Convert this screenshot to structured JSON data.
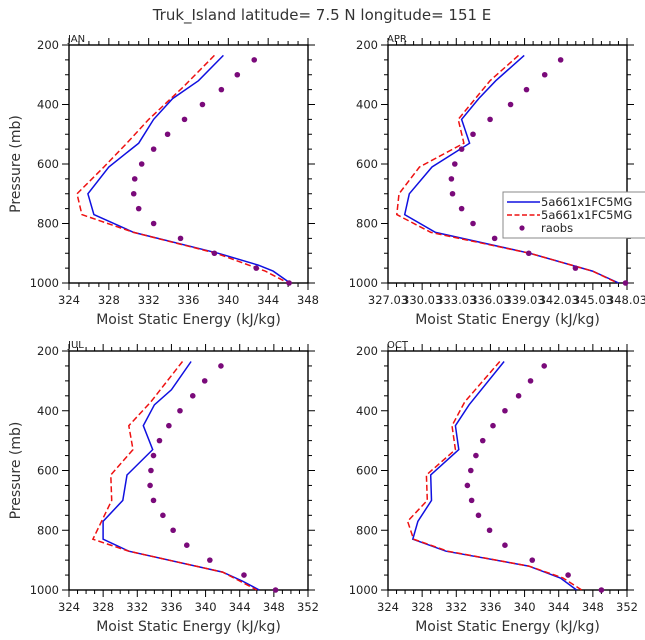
{
  "title": "Truk_Island   latitude=  7.5 N longitude=  151  E",
  "colors": {
    "model_solid": "#1010e0",
    "model_dashed": "#ee1111",
    "raobs": "#7a0a7a",
    "axis": "#000000"
  },
  "chart_data": [
    {
      "type": "line",
      "panel": "JAN",
      "xlabel": "Moist Static Energy (kJ/kg)",
      "ylabel": "Pressure (mb)",
      "xlim": [
        324,
        348
      ],
      "ylim": [
        1000,
        200
      ],
      "xticks": [
        "324",
        "328",
        "332",
        "336",
        "340",
        "344",
        "348"
      ],
      "xtick_values": [
        324,
        328,
        332,
        336,
        340,
        344,
        348
      ],
      "yticks": [
        "200",
        "400",
        "600",
        "800",
        "1000"
      ],
      "ytick_values": [
        200,
        400,
        600,
        800,
        1000
      ],
      "series": [
        {
          "name": "5a661x1FC5MG",
          "style": "solid",
          "pressure": [
            235,
            320,
            380,
            450,
            530,
            610,
            700,
            770,
            830,
            900,
            940,
            960,
            1000
          ],
          "values": [
            339.5,
            337.0,
            334.4,
            332.5,
            331.0,
            328.0,
            325.9,
            326.5,
            330.5,
            339.0,
            343.0,
            344.5,
            346.2
          ]
        },
        {
          "name": "5a661x1FC5MG",
          "style": "dashed",
          "pressure": [
            235,
            340,
            450,
            530,
            610,
            700,
            770,
            830,
            900,
            960,
            1000
          ],
          "values": [
            338.6,
            335.5,
            332.0,
            329.8,
            327.5,
            324.8,
            325.3,
            330.5,
            338.8,
            343.7,
            346.0
          ]
        },
        {
          "name": "raobs",
          "style": "dots",
          "pressure": [
            250,
            300,
            350,
            400,
            450,
            500,
            550,
            600,
            650,
            700,
            750,
            800,
            850,
            900,
            950,
            1000
          ],
          "values": [
            342.6,
            340.9,
            339.3,
            337.4,
            335.6,
            333.9,
            332.5,
            331.3,
            330.6,
            330.5,
            331.0,
            332.5,
            335.2,
            338.6,
            342.8,
            346.1
          ]
        }
      ]
    },
    {
      "type": "line",
      "panel": "APR",
      "xlabel": "Moist Static Energy (kJ/kg)",
      "ylabel": "",
      "xlim": [
        327.03,
        348.03
      ],
      "ylim": [
        1000,
        200
      ],
      "xticks": [
        "327.03",
        "330.03",
        "333.03",
        "336.03",
        "339.03",
        "342.03",
        "345.03",
        "348.03"
      ],
      "xtick_values": [
        327.03,
        330.03,
        333.03,
        336.03,
        339.03,
        342.03,
        345.03,
        348.03
      ],
      "yticks": [
        "200",
        "400",
        "600",
        "800",
        "1000"
      ],
      "ytick_values": [
        200,
        400,
        600,
        800,
        1000
      ],
      "series": [
        {
          "name": "5a661x1FC5MG",
          "style": "solid",
          "pressure": [
            235,
            320,
            380,
            450,
            530,
            610,
            700,
            770,
            830,
            900,
            960,
            1000
          ],
          "values": [
            339.0,
            336.5,
            335.0,
            333.5,
            334.2,
            330.9,
            328.9,
            328.5,
            331.2,
            339.5,
            345.0,
            347.3
          ]
        },
        {
          "name": "5a661x1FC5MG",
          "style": "dashed",
          "pressure": [
            235,
            320,
            450,
            530,
            610,
            700,
            770,
            830,
            900,
            960,
            1000
          ],
          "values": [
            338.5,
            336.0,
            333.2,
            333.7,
            329.8,
            328.0,
            327.8,
            330.8,
            339.5,
            345.0,
            347.2
          ]
        },
        {
          "name": "raobs",
          "style": "dots",
          "pressure": [
            250,
            300,
            350,
            400,
            450,
            500,
            550,
            600,
            650,
            700,
            750,
            800,
            850,
            900,
            950,
            1000
          ],
          "values": [
            342.2,
            340.8,
            339.2,
            337.8,
            336.0,
            334.5,
            333.5,
            332.9,
            332.6,
            332.7,
            333.5,
            334.5,
            336.4,
            339.4,
            343.5,
            347.9
          ]
        }
      ],
      "legend": {
        "placement": "center-right",
        "entries": [
          "5a661x1FC5MG",
          "5a661x1FC5MG",
          "raobs"
        ]
      }
    },
    {
      "type": "line",
      "panel": "JUL",
      "xlabel": "Moist Static Energy (kJ/kg)",
      "ylabel": "Pressure (mb)",
      "xlim": [
        324,
        352
      ],
      "ylim": [
        1000,
        200
      ],
      "xticks": [
        "324",
        "328",
        "332",
        "336",
        "340",
        "344",
        "348",
        "352"
      ],
      "xtick_values": [
        324,
        328,
        332,
        336,
        340,
        344,
        348,
        352
      ],
      "yticks": [
        "200",
        "400",
        "600",
        "800",
        "1000"
      ],
      "ytick_values": [
        200,
        400,
        600,
        800,
        1000
      ],
      "series": [
        {
          "name": "5a661x1FC5MG",
          "style": "solid",
          "pressure": [
            235,
            330,
            380,
            450,
            530,
            615,
            700,
            770,
            830,
            870,
            940,
            970,
            1000
          ],
          "values": [
            338.3,
            336.0,
            334.0,
            332.7,
            333.8,
            330.8,
            330.3,
            328.0,
            328.0,
            331.0,
            342.0,
            344.3,
            346.3
          ]
        },
        {
          "name": "5a661x1FC5MG",
          "style": "dashed",
          "pressure": [
            235,
            370,
            450,
            530,
            615,
            700,
            830,
            870,
            940,
            970,
            1000
          ],
          "values": [
            337.3,
            333.6,
            331.0,
            331.5,
            328.9,
            329.0,
            326.8,
            331.0,
            342.0,
            344.0,
            346.0
          ]
        },
        {
          "name": "raobs",
          "style": "dots",
          "pressure": [
            250,
            300,
            350,
            400,
            450,
            500,
            550,
            600,
            650,
            700,
            750,
            800,
            850,
            900,
            950,
            1000
          ],
          "values": [
            341.8,
            339.9,
            338.5,
            337.0,
            335.7,
            334.6,
            333.9,
            333.6,
            333.5,
            333.9,
            335.0,
            336.2,
            337.8,
            340.5,
            344.5,
            348.2
          ]
        }
      ]
    },
    {
      "type": "line",
      "panel": "OCT",
      "xlabel": "Moist Static Energy (kJ/kg)",
      "ylabel": "",
      "xlim": [
        324,
        352
      ],
      "ylim": [
        1000,
        200
      ],
      "xticks": [
        "324",
        "328",
        "332",
        "336",
        "340",
        "344",
        "348",
        "352"
      ],
      "xtick_values": [
        324,
        328,
        332,
        336,
        340,
        344,
        348,
        352
      ],
      "yticks": [
        "200",
        "400",
        "600",
        "800",
        "1000"
      ],
      "ytick_values": [
        200,
        400,
        600,
        800,
        1000
      ],
      "series": [
        {
          "name": "5a661x1FC5MG",
          "style": "solid",
          "pressure": [
            235,
            380,
            450,
            530,
            615,
            700,
            770,
            830,
            870,
            920,
            960,
            1000
          ],
          "values": [
            337.6,
            333.5,
            331.9,
            332.3,
            329.0,
            329.1,
            327.5,
            326.9,
            330.8,
            340.5,
            344.2,
            346.1
          ]
        },
        {
          "name": "5a661x1FC5MG",
          "style": "dashed",
          "pressure": [
            235,
            370,
            450,
            530,
            615,
            700,
            770,
            830,
            870,
            920,
            960,
            1000
          ],
          "values": [
            337.1,
            333.0,
            331.5,
            331.9,
            328.5,
            328.6,
            326.3,
            327.0,
            331.0,
            340.5,
            344.5,
            346.7
          ]
        },
        {
          "name": "raobs",
          "style": "dots",
          "pressure": [
            250,
            300,
            350,
            400,
            450,
            500,
            550,
            600,
            650,
            700,
            750,
            800,
            850,
            900,
            950,
            1000
          ],
          "values": [
            342.3,
            340.7,
            339.3,
            337.7,
            336.3,
            335.1,
            334.3,
            333.7,
            333.3,
            333.8,
            334.6,
            335.9,
            337.7,
            340.9,
            345.1,
            349.0
          ]
        }
      ]
    }
  ]
}
